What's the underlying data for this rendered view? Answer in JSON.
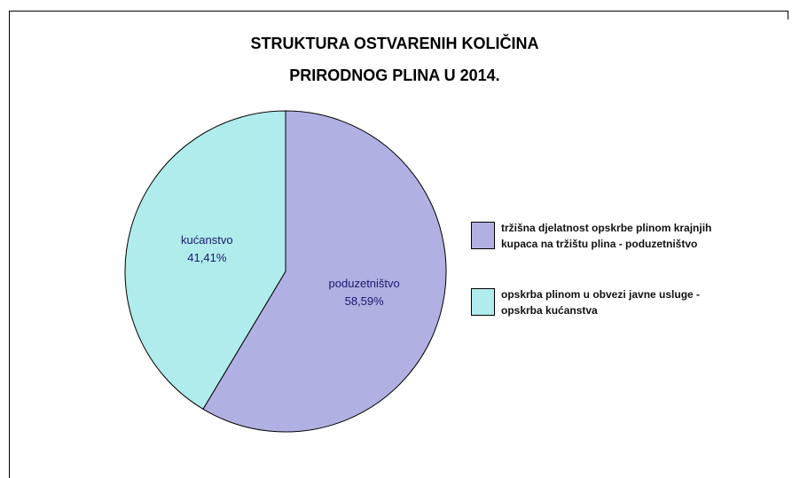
{
  "chart_data": {
    "type": "pie",
    "title": [
      "STRUKTURA OSTVARENIH KOLIČINA",
      "PRIRODNOG PLINA U 2014."
    ],
    "categories": [
      "poduzetništvo",
      "kućanstvo"
    ],
    "values": [
      58.59,
      41.41
    ],
    "value_labels": [
      "58,59%",
      "41,41%"
    ],
    "colors": [
      "#b0b0e2",
      "#b0ecec"
    ],
    "legend": [
      [
        "tržišna djelatnost opskrbe plinom krajnjih",
        "kupaca na tržištu plina - poduzetništvo"
      ],
      [
        "opskrba plinom u obvezi javne usluge -",
        "opskrba kućanstva"
      ]
    ]
  }
}
